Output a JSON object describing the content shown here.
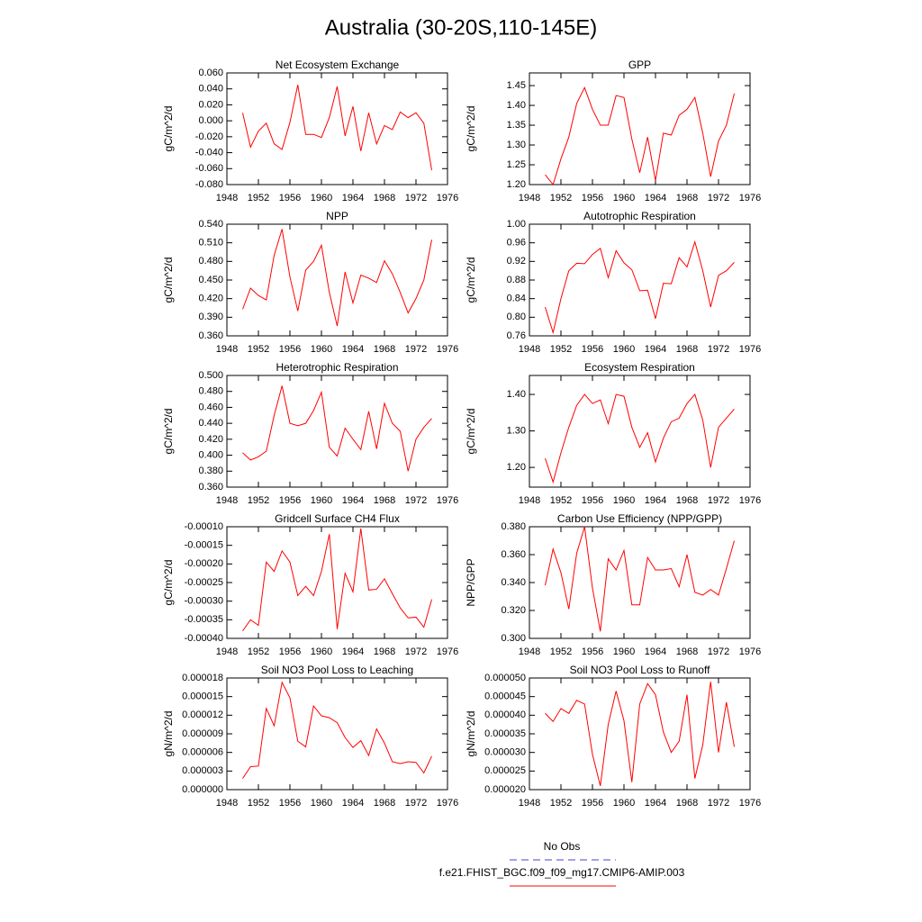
{
  "title": "Australia (30-20S,110-145E)",
  "legend": [
    {
      "name": "No Obs",
      "color": "#4444cc",
      "dash": true
    },
    {
      "name": "f.e21.FHIST_BGC.f09_f09_mg17.CMIP6-AMIP.003",
      "color": "#ff0000",
      "dash": false
    }
  ],
  "chart_data": [
    {
      "type": "line",
      "title": "Net Ecosystem Exchange",
      "ylabel": "gC/m^2/d",
      "color": "#ff0000",
      "x": [
        1950,
        1951,
        1952,
        1953,
        1954,
        1955,
        1956,
        1957,
        1958,
        1959,
        1960,
        1961,
        1962,
        1963,
        1964,
        1965,
        1966,
        1967,
        1968,
        1969,
        1970,
        1971,
        1972,
        1973,
        1974
      ],
      "values": [
        0.01,
        -0.033,
        -0.013,
        -0.003,
        -0.029,
        -0.036,
        -0.002,
        0.045,
        -0.017,
        -0.017,
        -0.021,
        0.004,
        0.043,
        -0.019,
        0.018,
        -0.038,
        0.01,
        -0.029,
        -0.006,
        -0.011,
        0.011,
        0.004,
        0.01,
        -0.003,
        -0.062
      ],
      "xlim": [
        1948,
        1976
      ],
      "xticks": [
        1948,
        1952,
        1956,
        1960,
        1964,
        1968,
        1972,
        1976
      ],
      "ylim": [
        -0.08,
        0.06
      ],
      "yticks": [
        {
          "value": -0.08,
          "label": "-0.080"
        },
        {
          "value": -0.06,
          "label": "-0.060"
        },
        {
          "value": -0.04,
          "label": "-0.040"
        },
        {
          "value": -0.02,
          "label": "-0.020"
        },
        {
          "value": 0,
          "label": "0.000"
        },
        {
          "value": 0.02,
          "label": "0.020"
        },
        {
          "value": 0.04,
          "label": "0.040"
        },
        {
          "value": 0.06,
          "label": "0.060"
        }
      ]
    },
    {
      "type": "line",
      "title": "GPP",
      "ylabel": "gC/m^2/d",
      "color": "#ff0000",
      "x": [
        1950,
        1951,
        1952,
        1953,
        1954,
        1955,
        1956,
        1957,
        1958,
        1959,
        1960,
        1961,
        1962,
        1963,
        1964,
        1965,
        1966,
        1967,
        1968,
        1969,
        1970,
        1971,
        1972,
        1973,
        1974
      ],
      "values": [
        1.225,
        1.2,
        1.265,
        1.32,
        1.405,
        1.445,
        1.39,
        1.35,
        1.35,
        1.425,
        1.42,
        1.315,
        1.23,
        1.32,
        1.21,
        1.33,
        1.325,
        1.375,
        1.39,
        1.42,
        1.33,
        1.22,
        1.31,
        1.35,
        1.43
      ],
      "xlim": [
        1948,
        1976
      ],
      "xticks": [
        1948,
        1952,
        1956,
        1960,
        1964,
        1968,
        1972,
        1976
      ],
      "ylim": [
        1.2,
        1.482
      ],
      "yticks": [
        {
          "value": 1.2,
          "label": "1.20"
        },
        1.25,
        {
          "value": 1.3,
          "label": "1.30"
        },
        1.35,
        {
          "value": 1.4,
          "label": "1.40"
        },
        1.45
      ]
    },
    {
      "type": "line",
      "title": "NPP",
      "ylabel": "gC/m^2/d",
      "color": "#ff0000",
      "x": [
        1950,
        1951,
        1952,
        1953,
        1954,
        1955,
        1956,
        1957,
        1958,
        1959,
        1960,
        1961,
        1962,
        1963,
        1964,
        1965,
        1966,
        1967,
        1968,
        1969,
        1970,
        1971,
        1972,
        1973,
        1974
      ],
      "values": [
        0.403,
        0.437,
        0.425,
        0.418,
        0.49,
        0.532,
        0.455,
        0.4,
        0.466,
        0.48,
        0.506,
        0.43,
        0.376,
        0.463,
        0.413,
        0.458,
        0.453,
        0.446,
        0.481,
        0.46,
        0.43,
        0.397,
        0.42,
        0.45,
        0.515
      ],
      "xlim": [
        1948,
        1976
      ],
      "xticks": [
        1948,
        1952,
        1956,
        1960,
        1964,
        1968,
        1972,
        1976
      ],
      "ylim": [
        0.36,
        0.54
      ],
      "yticks": [
        {
          "value": 0.36,
          "label": "0.360"
        },
        {
          "value": 0.39,
          "label": "0.390"
        },
        {
          "value": 0.42,
          "label": "0.420"
        },
        {
          "value": 0.45,
          "label": "0.450"
        },
        {
          "value": 0.48,
          "label": "0.480"
        },
        {
          "value": 0.51,
          "label": "0.510"
        },
        {
          "value": 0.54,
          "label": "0.540"
        }
      ]
    },
    {
      "type": "line",
      "title": "Autotrophic Respiration",
      "ylabel": "gC/m^2/d",
      "color": "#ff0000",
      "x": [
        1950,
        1951,
        1952,
        1953,
        1954,
        1955,
        1956,
        1957,
        1958,
        1959,
        1960,
        1961,
        1962,
        1963,
        1964,
        1965,
        1966,
        1967,
        1968,
        1969,
        1970,
        1971,
        1972,
        1973,
        1974
      ],
      "values": [
        0.822,
        0.767,
        0.84,
        0.9,
        0.916,
        0.915,
        0.935,
        0.948,
        0.885,
        0.943,
        0.917,
        0.902,
        0.857,
        0.858,
        0.797,
        0.873,
        0.872,
        0.928,
        0.908,
        0.962,
        0.9,
        0.822,
        0.89,
        0.9,
        0.918
      ],
      "xlim": [
        1948,
        1976
      ],
      "xticks": [
        1948,
        1952,
        1956,
        1960,
        1964,
        1968,
        1972,
        1976
      ],
      "ylim": [
        0.76,
        1.0
      ],
      "yticks": [
        0.76,
        {
          "value": 0.8,
          "label": "0.80"
        },
        0.84,
        0.88,
        0.92,
        0.96,
        {
          "value": 1.0,
          "label": "1.00"
        }
      ]
    },
    {
      "type": "line",
      "title": "Heterotrophic Respiration",
      "ylabel": "gC/m^2/d",
      "color": "#ff0000",
      "x": [
        1950,
        1951,
        1952,
        1953,
        1954,
        1955,
        1956,
        1957,
        1958,
        1959,
        1960,
        1961,
        1962,
        1963,
        1964,
        1965,
        1966,
        1967,
        1968,
        1969,
        1970,
        1971,
        1972,
        1973,
        1974
      ],
      "values": [
        0.403,
        0.394,
        0.398,
        0.405,
        0.45,
        0.487,
        0.44,
        0.437,
        0.44,
        0.456,
        0.479,
        0.41,
        0.399,
        0.434,
        0.42,
        0.407,
        0.455,
        0.408,
        0.465,
        0.44,
        0.43,
        0.38,
        0.42,
        0.435,
        0.446
      ],
      "xlim": [
        1948,
        1976
      ],
      "xticks": [
        1948,
        1952,
        1956,
        1960,
        1964,
        1968,
        1972,
        1976
      ],
      "ylim": [
        0.36,
        0.5
      ],
      "yticks": [
        {
          "value": 0.36,
          "label": "0.360"
        },
        {
          "value": 0.38,
          "label": "0.380"
        },
        {
          "value": 0.4,
          "label": "0.400"
        },
        {
          "value": 0.42,
          "label": "0.420"
        },
        {
          "value": 0.44,
          "label": "0.440"
        },
        {
          "value": 0.46,
          "label": "0.460"
        },
        {
          "value": 0.48,
          "label": "0.480"
        },
        {
          "value": 0.5,
          "label": "0.500"
        }
      ]
    },
    {
      "type": "line",
      "title": "Ecosystem Respiration",
      "ylabel": "gC/m^2/d",
      "color": "#ff0000",
      "x": [
        1950,
        1951,
        1952,
        1953,
        1954,
        1955,
        1956,
        1957,
        1958,
        1959,
        1960,
        1961,
        1962,
        1963,
        1964,
        1965,
        1966,
        1967,
        1968,
        1969,
        1970,
        1971,
        1972,
        1973,
        1974
      ],
      "values": [
        1.225,
        1.16,
        1.24,
        1.31,
        1.37,
        1.4,
        1.375,
        1.385,
        1.32,
        1.4,
        1.395,
        1.31,
        1.255,
        1.295,
        1.215,
        1.28,
        1.325,
        1.335,
        1.375,
        1.4,
        1.33,
        1.2,
        1.31,
        1.335,
        1.36
      ],
      "xlim": [
        1948,
        1976
      ],
      "xticks": [
        1948,
        1952,
        1956,
        1960,
        1964,
        1968,
        1972,
        1976
      ],
      "ylim": [
        1.146,
        1.452
      ],
      "yticks": [
        {
          "value": 1.2,
          "label": "1.20"
        },
        {
          "value": 1.3,
          "label": "1.30"
        },
        {
          "value": 1.4,
          "label": "1.40"
        }
      ]
    },
    {
      "type": "line",
      "title": "Gridcell Surface CH4 Flux",
      "ylabel": "gC/m^2/d",
      "color": "#ff0000",
      "x": [
        1950,
        1951,
        1952,
        1953,
        1954,
        1955,
        1956,
        1957,
        1958,
        1959,
        1960,
        1961,
        1962,
        1963,
        1964,
        1965,
        1966,
        1967,
        1968,
        1969,
        1970,
        1971,
        1972,
        1973,
        1974
      ],
      "values": [
        -0.00038,
        -0.00035,
        -0.000365,
        -0.000195,
        -0.00022,
        -0.000165,
        -0.000195,
        -0.000285,
        -0.00026,
        -0.000285,
        -0.00022,
        -0.00012,
        -0.000375,
        -0.000225,
        -0.000275,
        -0.000105,
        -0.00027,
        -0.000268,
        -0.00024,
        -0.00028,
        -0.000318,
        -0.000345,
        -0.000343,
        -0.00037,
        -0.000295
      ],
      "xlim": [
        1948,
        1976
      ],
      "xticks": [
        1948,
        1952,
        1956,
        1960,
        1964,
        1968,
        1972,
        1976
      ],
      "ylim": [
        -0.0004,
        -0.0001
      ],
      "yticks": [
        {
          "value": -0.0004,
          "label": "-0.00040"
        },
        -0.00035,
        {
          "value": -0.0003,
          "label": "-0.00030"
        },
        -0.00025,
        {
          "value": -0.0002,
          "label": "-0.00020"
        },
        -0.00015,
        {
          "value": -0.0001,
          "label": "-0.00010"
        }
      ]
    },
    {
      "type": "line",
      "title": "Carbon Use Efficiency (NPP/GPP)",
      "ylabel": "NPP/GPP",
      "color": "#ff0000",
      "x": [
        1950,
        1951,
        1952,
        1953,
        1954,
        1955,
        1956,
        1957,
        1958,
        1959,
        1960,
        1961,
        1962,
        1963,
        1964,
        1965,
        1966,
        1967,
        1968,
        1969,
        1970,
        1971,
        1972,
        1973,
        1974
      ],
      "values": [
        0.338,
        0.364,
        0.347,
        0.321,
        0.361,
        0.38,
        0.336,
        0.305,
        0.357,
        0.349,
        0.363,
        0.324,
        0.324,
        0.358,
        0.349,
        0.349,
        0.35,
        0.337,
        0.36,
        0.333,
        0.331,
        0.335,
        0.331,
        0.35,
        0.37
      ],
      "xlim": [
        1948,
        1976
      ],
      "xticks": [
        1948,
        1952,
        1956,
        1960,
        1964,
        1968,
        1972,
        1976
      ],
      "ylim": [
        0.3,
        0.38
      ],
      "yticks": [
        {
          "value": 0.3,
          "label": "0.300"
        },
        {
          "value": 0.32,
          "label": "0.320"
        },
        {
          "value": 0.34,
          "label": "0.340"
        },
        {
          "value": 0.36,
          "label": "0.360"
        },
        {
          "value": 0.38,
          "label": "0.380"
        }
      ]
    },
    {
      "type": "line",
      "title": "Soil NO3 Pool Loss to Leaching",
      "ylabel": "gN/m^2/d",
      "color": "#ff0000",
      "x": [
        1950,
        1951,
        1952,
        1953,
        1954,
        1955,
        1956,
        1957,
        1958,
        1959,
        1960,
        1961,
        1962,
        1963,
        1964,
        1965,
        1966,
        1967,
        1968,
        1969,
        1970,
        1971,
        1972,
        1973,
        1974
      ],
      "values": [
        1.8e-06,
        3.7e-06,
        3.8e-06,
        1.31e-05,
        1.03e-05,
        1.73e-05,
        1.48e-05,
        7.8e-06,
        6.9e-06,
        1.35e-05,
        1.19e-05,
        1.16e-05,
        1.08e-05,
        8.4e-06,
        6.8e-06,
        7.9e-06,
        5.5e-06,
        9.8e-06,
        7.5e-06,
        4.5e-06,
        4.2e-06,
        4.5e-06,
        4.4e-06,
        2.7e-06,
        5.4e-06
      ],
      "xlim": [
        1948,
        1976
      ],
      "xticks": [
        1948,
        1952,
        1956,
        1960,
        1964,
        1968,
        1972,
        1976
      ],
      "ylim": [
        0,
        1.8e-05
      ],
      "yticks": [
        {
          "value": 0,
          "label": "0.000000"
        },
        {
          "value": 3e-06,
          "label": "0.000003"
        },
        {
          "value": 6e-06,
          "label": "0.000006"
        },
        {
          "value": 9e-06,
          "label": "0.000009"
        },
        {
          "value": 1.2e-05,
          "label": "0.000012"
        },
        {
          "value": 1.5e-05,
          "label": "0.000015"
        },
        {
          "value": 1.8e-05,
          "label": "0.000018"
        }
      ]
    },
    {
      "type": "line",
      "title": "Soil NO3 Pool Loss to Runoff",
      "ylabel": "gN/m^2/d",
      "color": "#ff0000",
      "x": [
        1950,
        1951,
        1952,
        1953,
        1954,
        1955,
        1956,
        1957,
        1958,
        1959,
        1960,
        1961,
        1962,
        1963,
        1964,
        1965,
        1966,
        1967,
        1968,
        1969,
        1970,
        1971,
        1972,
        1973,
        1974
      ],
      "values": [
        4.05e-05,
        3.83e-05,
        4.18e-05,
        4.05e-05,
        4.4e-05,
        4.3e-05,
        2.95e-05,
        2.1e-05,
        3.75e-05,
        4.65e-05,
        3.85e-05,
        2.2e-05,
        4.3e-05,
        4.85e-05,
        4.55e-05,
        3.55e-05,
        3e-05,
        3.3e-05,
        4.55e-05,
        2.3e-05,
        3.2e-05,
        4.9e-05,
        3e-05,
        4.35e-05,
        3.15e-05
      ],
      "xlim": [
        1948,
        1976
      ],
      "xticks": [
        1948,
        1952,
        1956,
        1960,
        1964,
        1968,
        1972,
        1976
      ],
      "ylim": [
        2e-05,
        5e-05
      ],
      "yticks": [
        {
          "value": 2e-05,
          "label": "0.000020"
        },
        {
          "value": 2.5e-05,
          "label": "0.000025"
        },
        {
          "value": 3e-05,
          "label": "0.000030"
        },
        {
          "value": 3.5e-05,
          "label": "0.000035"
        },
        {
          "value": 4e-05,
          "label": "0.000040"
        },
        {
          "value": 4.5e-05,
          "label": "0.000045"
        },
        {
          "value": 5e-05,
          "label": "0.000050"
        }
      ]
    }
  ]
}
